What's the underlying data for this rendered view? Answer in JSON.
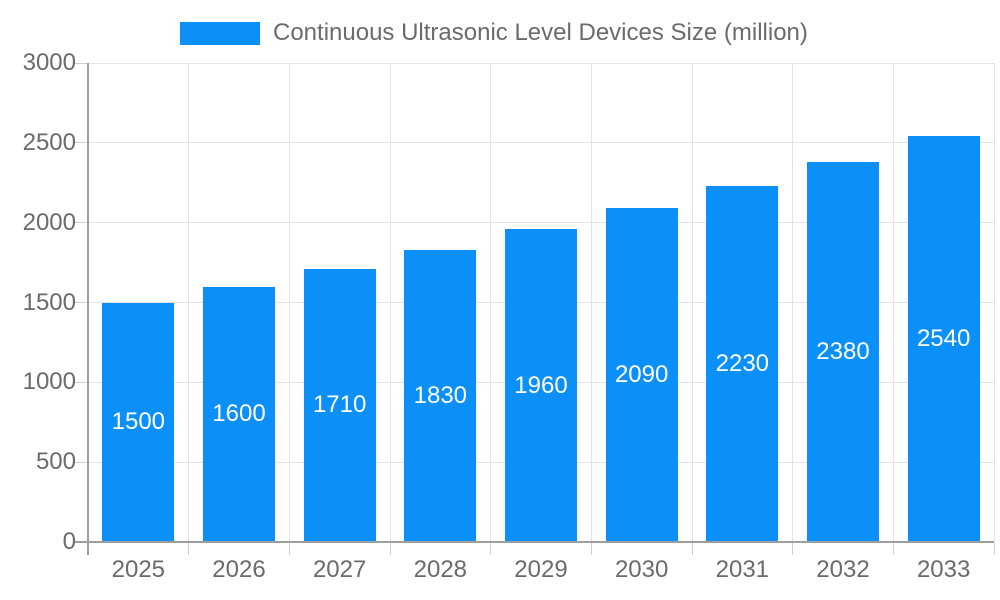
{
  "colors": {
    "bar": "#0a90f8",
    "grid": "#e3e3e3",
    "axis": "#9e9e9e",
    "tick": "#cfcfcf",
    "text": "#6b6b6b",
    "bar_label": "#ffffff",
    "background": "#ffffff"
  },
  "legend": {
    "label": "Continuous Ultrasonic Level Devices Size (million)"
  },
  "chart_data": {
    "type": "bar",
    "title": "Continuous Ultrasonic Level Devices Size (million)",
    "categories": [
      "2025",
      "2026",
      "2027",
      "2028",
      "2029",
      "2030",
      "2031",
      "2032",
      "2033"
    ],
    "values": [
      1500,
      1600,
      1710,
      1830,
      1960,
      2090,
      2230,
      2380,
      2540
    ],
    "xlabel": "",
    "ylabel": "",
    "ylim": [
      0,
      3000
    ],
    "yticks": [
      0,
      500,
      1000,
      1500,
      2000,
      2500,
      3000
    ],
    "grid": true,
    "legend_position": "top",
    "bar_value_labels": "inside-center"
  }
}
